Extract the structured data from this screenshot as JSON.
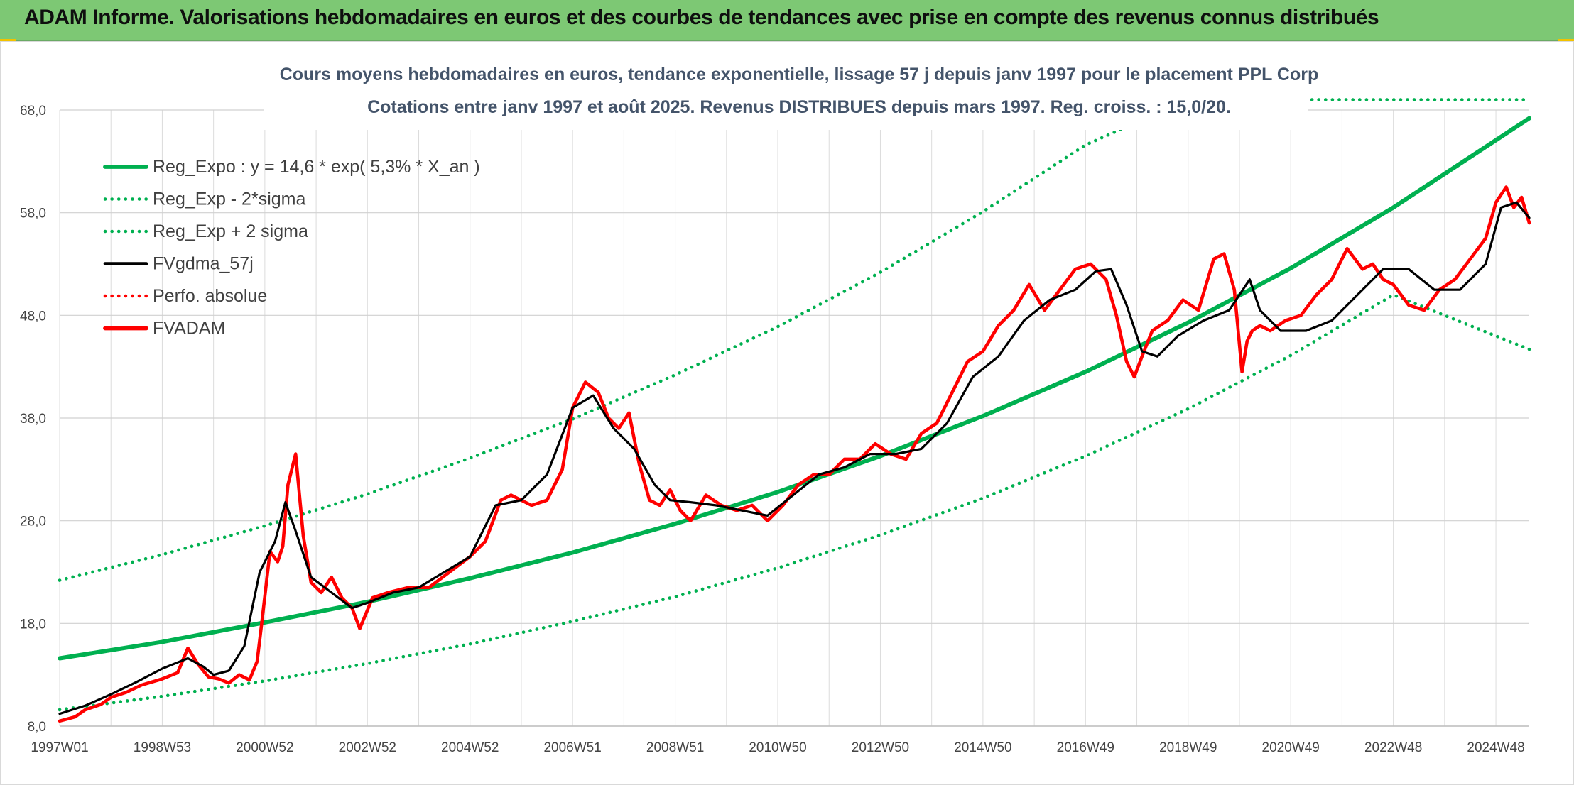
{
  "header": {
    "title": "ADAM Informe. Valorisations hebdomadaires en euros et des courbes de tendances avec prise en compte des revenus connus distribués"
  },
  "colors": {
    "banner": "#7dc874",
    "trend": "#00b050",
    "smooth": "#000000",
    "price": "#ff0000",
    "grid": "#d9d9d9",
    "text": "#44546a",
    "accent": "#f2c200"
  },
  "chart_data": {
    "type": "line",
    "title": "Cours moyens hebdomadaires en euros, tendance exponentielle, lissage 57 j depuis janv 1997 pour le placement PPL Corp",
    "subtitle": "Cotations entre janv 1997 et août 2025. Revenus DISTRIBUES depuis mars 1997. Reg. croiss. : 15,0/20.",
    "ylim": [
      8,
      68
    ],
    "y_ticks": [
      "8,0",
      "18,0",
      "28,0",
      "38,0",
      "48,0",
      "58,0",
      "68,0"
    ],
    "x_range": [
      1997.0,
      2025.65
    ],
    "x_ticks": [
      {
        "label": "1997W01",
        "year": 1997.0
      },
      {
        "label": "1998W53",
        "year": 1999.0
      },
      {
        "label": "2000W52",
        "year": 2001.0
      },
      {
        "label": "2002W52",
        "year": 2003.0
      },
      {
        "label": "2004W52",
        "year": 2005.0
      },
      {
        "label": "2006W51",
        "year": 2007.0
      },
      {
        "label": "2008W51",
        "year": 2009.0
      },
      {
        "label": "2010W50",
        "year": 2011.0
      },
      {
        "label": "2012W50",
        "year": 2013.0
      },
      {
        "label": "2014W50",
        "year": 2015.0
      },
      {
        "label": "2016W49",
        "year": 2017.0
      },
      {
        "label": "2018W49",
        "year": 2019.0
      },
      {
        "label": "2020W49",
        "year": 2021.0
      },
      {
        "label": "2022W48",
        "year": 2023.0
      },
      {
        "label": "2024W48",
        "year": 2025.0
      }
    ],
    "grid": true,
    "legend_position": "top-left",
    "regression": {
      "a": 14.6,
      "rate_pct": 5.3,
      "sigma_offset_start": 7.5
    },
    "series": [
      {
        "name": "Reg_Expo : y = 14,6 * exp( 5,3% *  X_an )",
        "style": "solid",
        "color": "#00b050",
        "x": [
          1997.0,
          1999.0,
          2001.0,
          2003.0,
          2005.0,
          2007.0,
          2009.0,
          2011.0,
          2013.0,
          2015.0,
          2017.0,
          2019.0,
          2021.0,
          2023.0,
          2025.65
        ],
        "values": [
          14.6,
          16.2,
          18.1,
          20.1,
          22.4,
          24.9,
          27.7,
          30.8,
          34.3,
          38.2,
          42.5,
          47.3,
          52.6,
          58.5,
          67.2
        ]
      },
      {
        "name": "Reg_Exp - 2*sigma",
        "style": "dotted",
        "color": "#00b050",
        "x": [
          1997.0,
          1999.0,
          2001.0,
          2003.0,
          2005.0,
          2007.0,
          2009.0,
          2011.0,
          2013.0,
          2015.0,
          2017.0,
          2019.0,
          2021.0,
          2023.0,
          2025.65
        ],
        "values": [
          9.6,
          10.9,
          12.4,
          14.1,
          16.0,
          18.2,
          20.6,
          23.4,
          26.6,
          30.2,
          34.3,
          38.9,
          44.1,
          50.0,
          44.7
        ]
      },
      {
        "name": "Reg_Exp + 2 sigma",
        "style": "dotted",
        "color": "#00b050",
        "x": [
          1997.0,
          1999.0,
          2001.0,
          2003.0,
          2005.0,
          2007.0,
          2009.0,
          2011.0,
          2013.0,
          2015.0,
          2017.0,
          2019.0,
          2021.0,
          2023.0,
          2025.65
        ],
        "values": [
          22.2,
          24.7,
          27.5,
          30.6,
          34.1,
          37.9,
          42.2,
          46.9,
          52.2,
          58.1,
          64.6,
          69.0,
          69.0,
          69.0,
          69.0
        ]
      },
      {
        "name": "FVgdma_57j",
        "style": "solid",
        "color": "#000000",
        "x": [
          1997.0,
          1997.5,
          1998.0,
          1998.5,
          1999.0,
          1999.5,
          1999.8,
          2000.0,
          2000.3,
          2000.6,
          2000.9,
          2001.2,
          2001.4,
          2001.6,
          2001.9,
          2002.3,
          2002.7,
          2003.0,
          2003.5,
          2004.0,
          2004.5,
          2005.0,
          2005.5,
          2006.0,
          2006.5,
          2007.0,
          2007.4,
          2007.8,
          2008.2,
          2008.6,
          2008.9,
          2009.3,
          2009.8,
          2010.3,
          2010.8,
          2011.3,
          2011.8,
          2012.3,
          2012.8,
          2013.3,
          2013.8,
          2014.3,
          2014.8,
          2015.3,
          2015.8,
          2016.3,
          2016.8,
          2017.2,
          2017.5,
          2017.8,
          2018.1,
          2018.4,
          2018.8,
          2019.3,
          2019.8,
          2020.2,
          2020.4,
          2020.8,
          2021.3,
          2021.8,
          2022.3,
          2022.8,
          2023.3,
          2023.8,
          2024.3,
          2024.8,
          2025.1,
          2025.4,
          2025.65
        ],
        "values": [
          9.2,
          10.0,
          11.1,
          12.3,
          13.6,
          14.6,
          13.8,
          13.0,
          13.4,
          15.8,
          23.0,
          26.0,
          29.8,
          27.0,
          22.5,
          21.0,
          19.5,
          20.0,
          21.0,
          21.5,
          23.0,
          24.5,
          29.5,
          30.0,
          32.5,
          39.0,
          40.2,
          37.0,
          35.0,
          31.5,
          30.0,
          29.8,
          29.5,
          29.0,
          28.5,
          30.5,
          32.5,
          33.2,
          34.5,
          34.5,
          35.0,
          37.5,
          42.0,
          44.0,
          47.5,
          49.5,
          50.5,
          52.3,
          52.5,
          49.0,
          44.5,
          44.0,
          46.0,
          47.5,
          48.5,
          51.5,
          48.5,
          46.5,
          46.5,
          47.5,
          50.0,
          52.5,
          52.5,
          50.5,
          50.5,
          53.0,
          58.5,
          59.0,
          57.5
        ]
      },
      {
        "name": "Perfo. absolue",
        "style": "dotted",
        "color": "#ff0000",
        "x": [],
        "values": []
      },
      {
        "name": "FVADAM",
        "style": "solid",
        "color": "#ff0000",
        "x": [
          1997.0,
          1997.3,
          1997.5,
          1997.8,
          1998.0,
          1998.3,
          1998.6,
          1999.0,
          1999.3,
          1999.5,
          1999.7,
          1999.9,
          2000.1,
          2000.3,
          2000.5,
          2000.7,
          2000.85,
          2000.95,
          2001.1,
          2001.25,
          2001.35,
          2001.45,
          2001.6,
          2001.75,
          2001.9,
          2002.1,
          2002.3,
          2002.5,
          2002.7,
          2002.85,
          2003.1,
          2003.4,
          2003.8,
          2004.2,
          2004.6,
          2005.0,
          2005.3,
          2005.6,
          2005.8,
          2006.2,
          2006.5,
          2006.8,
          2007.0,
          2007.25,
          2007.5,
          2007.7,
          2007.9,
          2008.1,
          2008.3,
          2008.5,
          2008.7,
          2008.9,
          2009.1,
          2009.3,
          2009.6,
          2009.9,
          2010.2,
          2010.5,
          2010.8,
          2011.1,
          2011.4,
          2011.7,
          2012.0,
          2012.3,
          2012.6,
          2012.9,
          2013.2,
          2013.5,
          2013.8,
          2014.1,
          2014.4,
          2014.7,
          2015.0,
          2015.3,
          2015.6,
          2015.9,
          2016.2,
          2016.5,
          2016.8,
          2017.1,
          2017.4,
          2017.6,
          2017.8,
          2017.95,
          2018.1,
          2018.3,
          2018.6,
          2018.9,
          2019.2,
          2019.5,
          2019.7,
          2019.9,
          2020.05,
          2020.15,
          2020.25,
          2020.4,
          2020.6,
          2020.9,
          2021.2,
          2021.5,
          2021.8,
          2022.1,
          2022.4,
          2022.6,
          2022.8,
          2023.0,
          2023.3,
          2023.6,
          2023.9,
          2024.2,
          2024.5,
          2024.8,
          2025.0,
          2025.2,
          2025.35,
          2025.5,
          2025.65
        ],
        "values": [
          8.5,
          8.9,
          9.6,
          10.1,
          10.8,
          11.3,
          12.0,
          12.6,
          13.2,
          15.6,
          14.0,
          12.8,
          12.6,
          12.2,
          13.0,
          12.5,
          14.3,
          18.5,
          25.0,
          24.0,
          25.5,
          31.5,
          34.5,
          26.5,
          22.0,
          21.0,
          22.5,
          20.5,
          19.5,
          17.5,
          20.5,
          21.0,
          21.5,
          21.5,
          23.0,
          24.5,
          26.0,
          30.0,
          30.5,
          29.5,
          30.0,
          33.0,
          39.0,
          41.5,
          40.5,
          38.0,
          37.0,
          38.5,
          33.5,
          30.0,
          29.5,
          31.0,
          29.0,
          28.0,
          30.5,
          29.5,
          29.0,
          29.5,
          28.0,
          29.5,
          31.5,
          32.5,
          32.5,
          34.0,
          34.0,
          35.5,
          34.5,
          34.0,
          36.5,
          37.5,
          40.5,
          43.5,
          44.5,
          47.0,
          48.5,
          51.0,
          48.5,
          50.5,
          52.5,
          53.0,
          51.5,
          48.0,
          43.5,
          42.0,
          44.0,
          46.5,
          47.5,
          49.5,
          48.5,
          53.5,
          54.0,
          50.5,
          42.5,
          45.5,
          46.5,
          47.0,
          46.5,
          47.5,
          48.0,
          50.0,
          51.5,
          54.5,
          52.5,
          53.0,
          51.5,
          51.0,
          49.0,
          48.5,
          50.5,
          51.5,
          53.5,
          55.5,
          59.0,
          60.5,
          58.5,
          59.5,
          57.0
        ]
      }
    ]
  }
}
